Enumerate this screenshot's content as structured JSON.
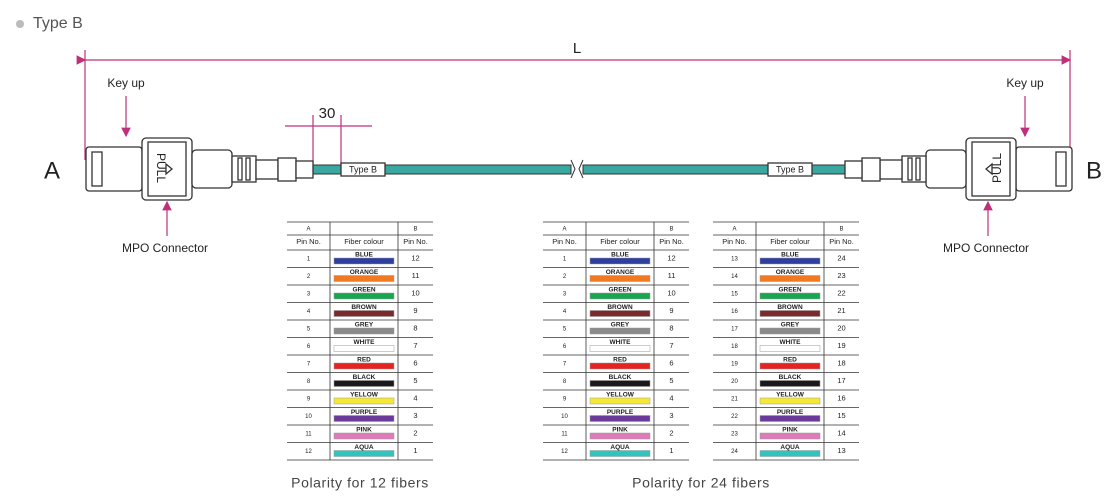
{
  "header": {
    "title": "Type B"
  },
  "diagram": {
    "length_label": "L",
    "key_up": [
      "Key up",
      "Key up"
    ],
    "dimension": "30",
    "end_a": "A",
    "end_b": "B",
    "pull": [
      "PULL",
      "PULL"
    ],
    "cable_labels": [
      "Type B",
      "Type B"
    ],
    "connector_labels": [
      "MPO Connector",
      "MPO Connector"
    ]
  },
  "swatches": [
    "#2e3f9e",
    "#f07a20",
    "#1aa550",
    "#7a2a2a",
    "#8a8a8a",
    "#ffffff",
    "#e52421",
    "#1a1a1a",
    "#f7e836",
    "#6a3a9a",
    "#e07ab8",
    "#2ec4c0"
  ],
  "polarity": [
    {
      "caption": "Polarity for 12 fibers",
      "tables": [
        {
          "top": [
            "A",
            "B"
          ],
          "columns": [
            "Pin No.",
            "Fiber colour",
            "Pin No."
          ],
          "rows": [
            [
              1,
              "BLUE",
              12
            ],
            [
              2,
              "ORANGE",
              11
            ],
            [
              3,
              "GREEN",
              10
            ],
            [
              4,
              "BROWN",
              9
            ],
            [
              5,
              "GREY",
              8
            ],
            [
              6,
              "WHITE",
              7
            ],
            [
              7,
              "RED",
              6
            ],
            [
              8,
              "BLACK",
              5
            ],
            [
              9,
              "YELLOW",
              4
            ],
            [
              10,
              "PURPLE",
              3
            ],
            [
              11,
              "PINK",
              2
            ],
            [
              12,
              "AQUA",
              1
            ]
          ]
        }
      ]
    },
    {
      "caption": "Polarity for 24 fibers",
      "tables": [
        {
          "top": [
            "A",
            "B"
          ],
          "columns": [
            "Pin No.",
            "Fiber colour",
            "Pin No."
          ],
          "rows": [
            [
              1,
              "BLUE",
              12
            ],
            [
              2,
              "ORANGE",
              11
            ],
            [
              3,
              "GREEN",
              10
            ],
            [
              4,
              "BROWN",
              9
            ],
            [
              5,
              "GREY",
              8
            ],
            [
              6,
              "WHITE",
              7
            ],
            [
              7,
              "RED",
              6
            ],
            [
              8,
              "BLACK",
              5
            ],
            [
              9,
              "YELLOW",
              4
            ],
            [
              10,
              "PURPLE",
              3
            ],
            [
              11,
              "PINK",
              2
            ],
            [
              12,
              "AQUA",
              1
            ]
          ]
        },
        {
          "top": [
            "A",
            "B"
          ],
          "columns": [
            "Pin No.",
            "Fiber colour",
            "Pin No."
          ],
          "rows": [
            [
              13,
              "BLUE",
              24
            ],
            [
              14,
              "ORANGE",
              23
            ],
            [
              15,
              "GREEN",
              22
            ],
            [
              16,
              "BROWN",
              21
            ],
            [
              17,
              "GREY",
              20
            ],
            [
              18,
              "WHITE",
              19
            ],
            [
              19,
              "RED",
              18
            ],
            [
              20,
              "BLACK",
              17
            ],
            [
              21,
              "YELLOW",
              16
            ],
            [
              22,
              "PURPLE",
              15
            ],
            [
              23,
              "PINK",
              14
            ],
            [
              24,
              "AQUA",
              13
            ]
          ]
        }
      ]
    }
  ]
}
